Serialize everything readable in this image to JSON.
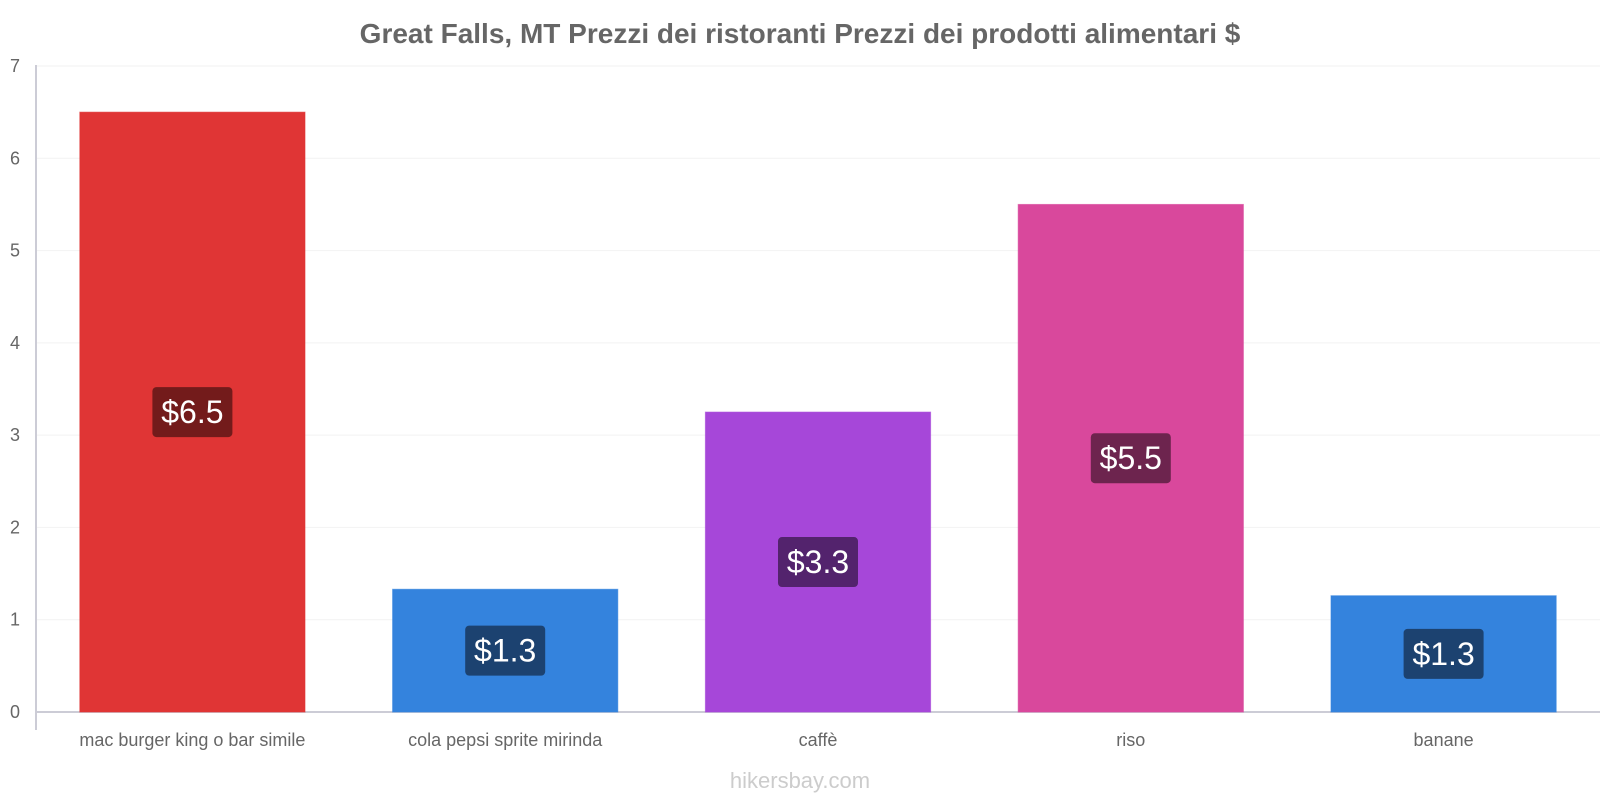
{
  "chart_data": {
    "type": "bar",
    "title": "Great Falls, MT Prezzi dei ristoranti Prezzi dei prodotti alimentari $",
    "categories": [
      "mac burger king o bar simile",
      "cola pepsi sprite mirinda",
      "caffè",
      "riso",
      "banane"
    ],
    "values": [
      6.5,
      1.3,
      3.3,
      5.5,
      1.3
    ],
    "bar_heights": [
      6.5,
      1.33,
      3.25,
      5.5,
      1.26
    ],
    "value_labels": [
      "$6.5",
      "$1.3",
      "$3.3",
      "$5.5",
      "$1.3"
    ],
    "bar_colors": [
      "#e03535",
      "#3483dd",
      "#a647d9",
      "#d9489c",
      "#3483dd"
    ],
    "label_colors": [
      "#731b1b",
      "#1c4270",
      "#53236d",
      "#6d244e",
      "#1c4270"
    ],
    "ylim": [
      0,
      7
    ],
    "yticks": [
      "0",
      "1",
      "2",
      "3",
      "4",
      "5",
      "6",
      "7"
    ],
    "xlabel": "",
    "ylabel": "",
    "grid": true,
    "legend": "none"
  },
  "watermark": "hikersbay.com"
}
